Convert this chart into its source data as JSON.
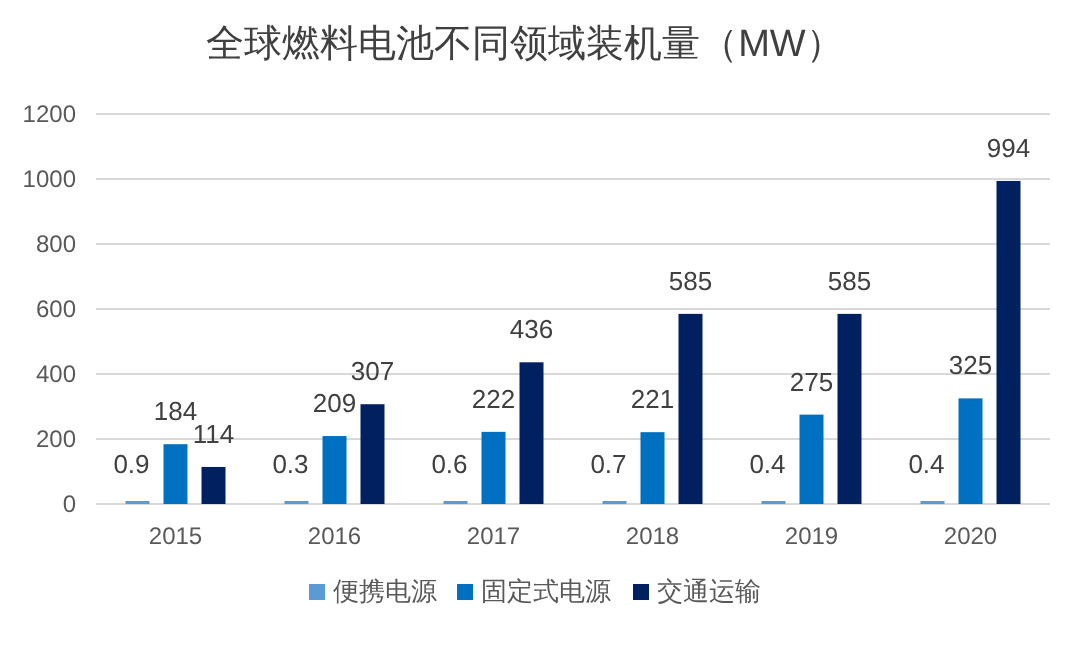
{
  "chart_data": {
    "type": "bar",
    "title": "全球燃料电池不同领域装机量（MW）",
    "categories": [
      "2015",
      "2016",
      "2017",
      "2018",
      "2019",
      "2020"
    ],
    "series": [
      {
        "name": "便携电源",
        "color": "#5b9bd5",
        "values": [
          0.9,
          0.3,
          0.6,
          0.7,
          0.4,
          0.4
        ]
      },
      {
        "name": "固定式电源",
        "color": "#0070c0",
        "values": [
          184,
          209,
          222,
          221,
          275,
          325
        ]
      },
      {
        "name": "交通运输",
        "color": "#002060",
        "values": [
          114,
          307,
          436,
          585,
          585,
          994
        ]
      }
    ],
    "ylim": [
      0,
      1200
    ],
    "yticks": [
      0,
      200,
      400,
      600,
      800,
      1000,
      1200
    ],
    "grid": "y",
    "legend": "bottom",
    "data_labels": true
  }
}
